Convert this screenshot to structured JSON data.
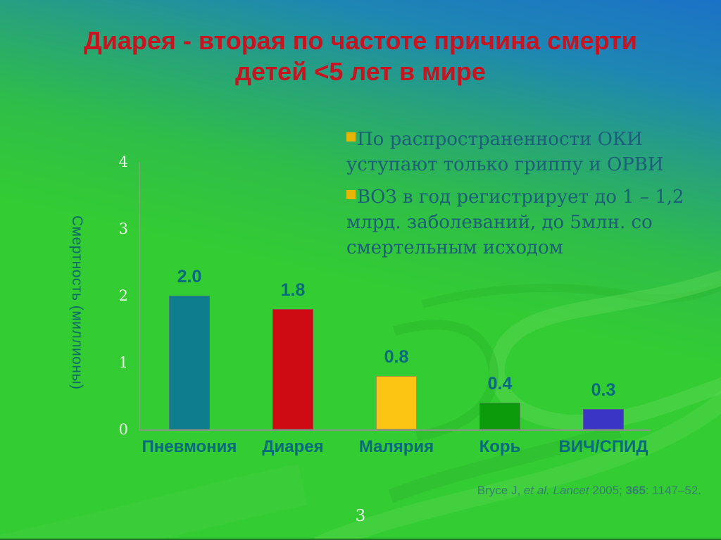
{
  "slide": {
    "title_line1": "Диарея - вторая по частоте причина смерти",
    "title_line2": "детей <5 лет в мире",
    "page_number": "3",
    "citation": {
      "prefix": "Bryce J, ",
      "italic": "et al. Lancet ",
      "year": "2005; ",
      "volume": "365",
      "suffix": ": 1147–52."
    }
  },
  "bullets": [
    {
      "text": "По распространенности ОКИ  уступают только гриппу и ОРВИ"
    },
    {
      "text": "ВОЗ в год регистрирует до 1 – 1,2 млрд. заболеваний, до 5млн. со смертельным исходом"
    }
  ],
  "colors": {
    "title_red": "#C81420",
    "label_teal": "#0A6B7E",
    "bullet_text": "#1D5E78",
    "bullet_square": "#E6B606",
    "tick_text": "#EAF6E6",
    "citation_text": "#36806F",
    "background_top": "#1B72C6",
    "background_bottom": "#33CC33",
    "axis_gray": "#8A978A"
  },
  "chart_data": {
    "type": "bar",
    "title": "",
    "categories": [
      "Пневмония",
      "Диарея",
      "Малярия",
      "Корь",
      "ВИЧ/СПИД"
    ],
    "values": [
      2.0,
      1.8,
      0.8,
      0.4,
      0.3
    ],
    "value_labels": [
      "2.0",
      "1.8",
      "0.8",
      "0.4",
      "0.3"
    ],
    "bar_colors": [
      "#0E7D8D",
      "#CE0A12",
      "#FDC513",
      "#0B9B0B",
      "#3A35C4"
    ],
    "xlabel": "",
    "ylabel": "Смертность (миллионы)",
    "yticks": [
      0,
      1,
      2,
      3,
      4
    ],
    "ylim": [
      0,
      4
    ],
    "grid": false,
    "legend": null
  }
}
